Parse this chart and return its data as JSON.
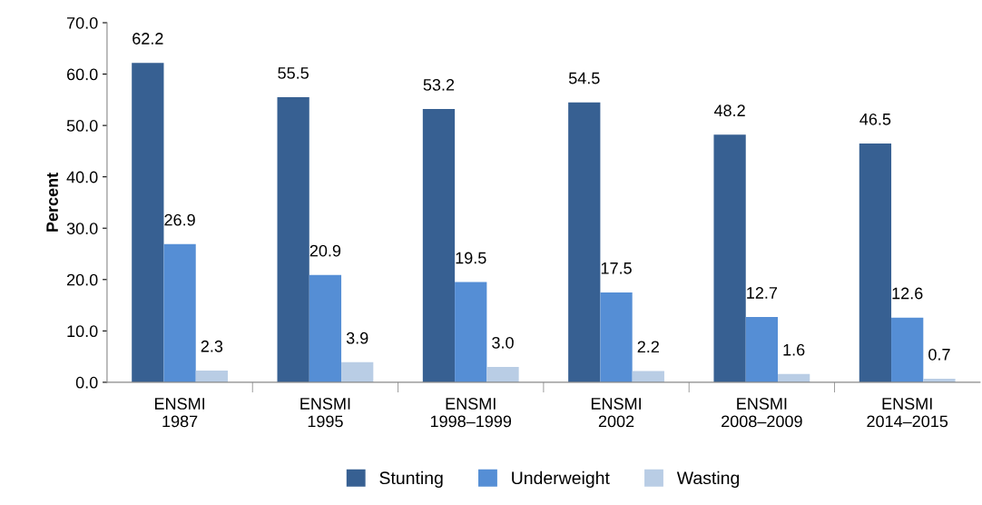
{
  "chart_data": {
    "type": "bar",
    "ylabel": "Percent",
    "categories": [
      "ENSMI\n1987",
      "ENSMI\n1995",
      "ENSMI\n1998–1999",
      "ENSMI\n2002",
      "ENSMI\n2008–2009",
      "ENSMI\n2014–2015"
    ],
    "series": [
      {
        "name": "Stunting",
        "color": "#376092",
        "values": [
          62.2,
          55.5,
          53.2,
          54.5,
          48.2,
          46.5
        ],
        "value_labels": [
          "62.2",
          "55.5",
          "53.2",
          "54.5",
          "48.2",
          "46.5"
        ]
      },
      {
        "name": "Underweight",
        "color": "#558ed5",
        "values": [
          26.9,
          20.9,
          19.5,
          17.5,
          12.7,
          12.6
        ],
        "value_labels": [
          "26.9",
          "20.9",
          "19.5",
          "17.5",
          "12.7",
          "12.6"
        ]
      },
      {
        "name": "Wasting",
        "color": "#b9cde5",
        "values": [
          2.3,
          3.9,
          3.0,
          2.2,
          1.6,
          0.7
        ],
        "value_labels": [
          "2.3",
          "3.9",
          "3.0",
          "2.2",
          "1.6",
          "0.7"
        ]
      }
    ],
    "ylim": [
      0,
      70
    ],
    "yticks": [
      {
        "value": 0,
        "label": "0.0"
      },
      {
        "value": 10,
        "label": "10.0"
      },
      {
        "value": 20,
        "label": "20.0"
      },
      {
        "value": 30,
        "label": "30.0"
      },
      {
        "value": 40,
        "label": "40.0"
      },
      {
        "value": 50,
        "label": "50.0"
      },
      {
        "value": 60,
        "label": "60.0"
      },
      {
        "value": 70,
        "label": "70.0"
      }
    ],
    "grid": false,
    "legend": "bottom"
  }
}
